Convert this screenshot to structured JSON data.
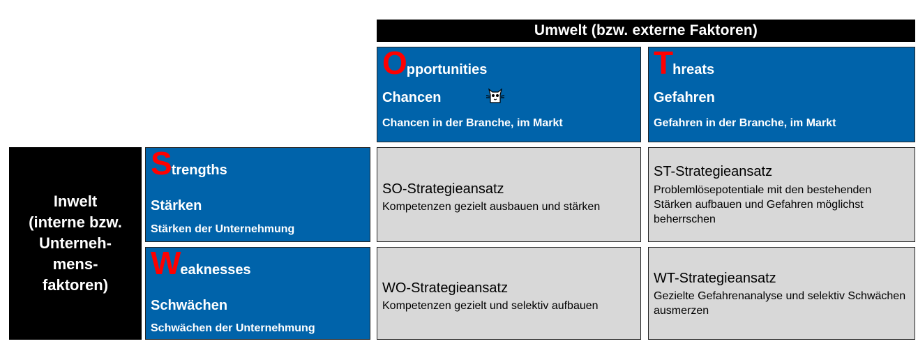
{
  "header": {
    "text": "Umwelt  (bzw. externe Faktoren)"
  },
  "inwelt": {
    "text": "Inwelt\n(interne bzw.\nUnterneh-\nmens-\nfaktoren)"
  },
  "opportunities": {
    "letter": "O",
    "rest": "pportunities",
    "german": "Chancen",
    "desc": "Chancen in der Branche, im Markt"
  },
  "threats": {
    "letter": "T",
    "rest": "hreats",
    "german": "Gefahren",
    "desc": "Gefahren in der Branche, im Markt"
  },
  "strengths": {
    "letter": "S",
    "rest": "trengths",
    "german": "Stärken",
    "desc": "Stärken der Unternehmung"
  },
  "weaknesses": {
    "letter": "W",
    "rest": "eaknesses",
    "german": "Schwächen",
    "desc": "Schwächen der Unternehmung"
  },
  "so": {
    "title": "SO-Strategieansatz",
    "desc": "Kompetenzen gezielt ausbauen und stärken"
  },
  "st": {
    "title": "ST-Strategieansatz",
    "desc": "Problemlösepotentiale mit den bestehenden Stärken aufbauen und Gefahren möglichst beherrschen"
  },
  "wo": {
    "title": "WO-Strategieansatz",
    "desc": "Kompetenzen gezielt und selektiv aufbauen"
  },
  "wt": {
    "title": "WT-Strategieansatz",
    "desc": "Gezielte Gefahrenanalyse und selektiv Schwächen ausmerzen"
  },
  "icons": {
    "decoration": "cat-icon"
  },
  "colors": {
    "blue": "#0063aa",
    "red": "#ff0000",
    "gray": "#d8d8d8",
    "black": "#000000"
  }
}
